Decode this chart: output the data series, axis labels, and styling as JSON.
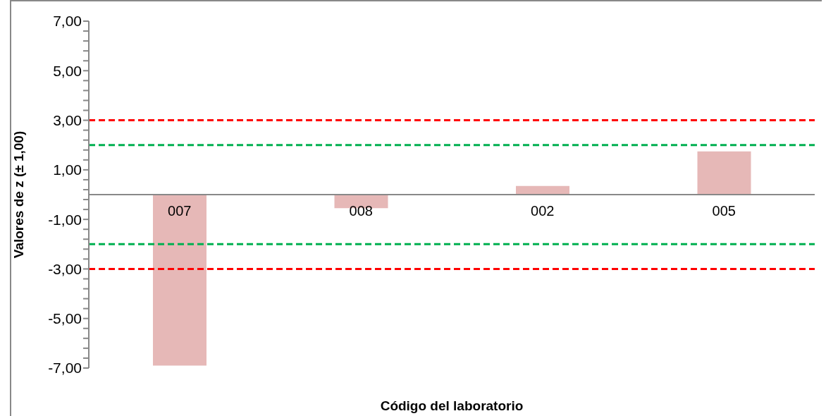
{
  "chart_data": {
    "type": "bar",
    "xlabel": "Código del laboratorio",
    "ylabel": "Valores de z (± 1,00)",
    "categories": [
      "007",
      "008",
      "002",
      "005"
    ],
    "values": [
      -6.9,
      -0.55,
      0.35,
      1.74
    ],
    "color": "#e6b8b7",
    "ylim": [
      -7,
      7
    ],
    "yticks": [
      {
        "value": -7,
        "label": "-7,00"
      },
      {
        "value": -6.6,
        "label": null
      },
      {
        "value": -6.2,
        "label": null
      },
      {
        "value": -5.8,
        "label": null
      },
      {
        "value": -5.4,
        "label": null
      },
      {
        "value": -5,
        "label": "-5,00"
      },
      {
        "value": -4.6,
        "label": null
      },
      {
        "value": -4.2,
        "label": null
      },
      {
        "value": -3.8,
        "label": null
      },
      {
        "value": -3.4,
        "label": null
      },
      {
        "value": -3,
        "label": "-3,00"
      },
      {
        "value": -2.6,
        "label": null
      },
      {
        "value": -2.2,
        "label": null
      },
      {
        "value": -1.8,
        "label": null
      },
      {
        "value": -1.4,
        "label": null
      },
      {
        "value": -1,
        "label": "-1,00"
      },
      {
        "value": -0.6,
        "label": null
      },
      {
        "value": -0.2,
        "label": null
      },
      {
        "value": 0.2,
        "label": null
      },
      {
        "value": 0.6,
        "label": null
      },
      {
        "value": 1,
        "label": "1,00"
      },
      {
        "value": 1.4,
        "label": null
      },
      {
        "value": 1.8,
        "label": null
      },
      {
        "value": 2.2,
        "label": null
      },
      {
        "value": 2.6,
        "label": null
      },
      {
        "value": 3,
        "label": "3,00"
      },
      {
        "value": 3.4,
        "label": null
      },
      {
        "value": 3.8,
        "label": null
      },
      {
        "value": 4.2,
        "label": null
      },
      {
        "value": 4.6,
        "label": null
      },
      {
        "value": 5,
        "label": "5,00"
      },
      {
        "value": 5.4,
        "label": null
      },
      {
        "value": 5.8,
        "label": null
      },
      {
        "value": 6.2,
        "label": null
      },
      {
        "value": 6.6,
        "label": null
      },
      {
        "value": 7,
        "label": "7,00"
      }
    ],
    "ref_lines": [
      {
        "axis": "y",
        "value": 3,
        "color": "#ff0000",
        "line_style": "dashed"
      },
      {
        "axis": "y",
        "value": 2,
        "color": "#00b050",
        "line_style": "dashed"
      },
      {
        "axis": "y",
        "value": -2,
        "color": "#00b050",
        "line_style": "dashed"
      },
      {
        "axis": "y",
        "value": -3,
        "color": "#ff0000",
        "line_style": "dashed"
      }
    ],
    "grid": false,
    "legend": false
  }
}
